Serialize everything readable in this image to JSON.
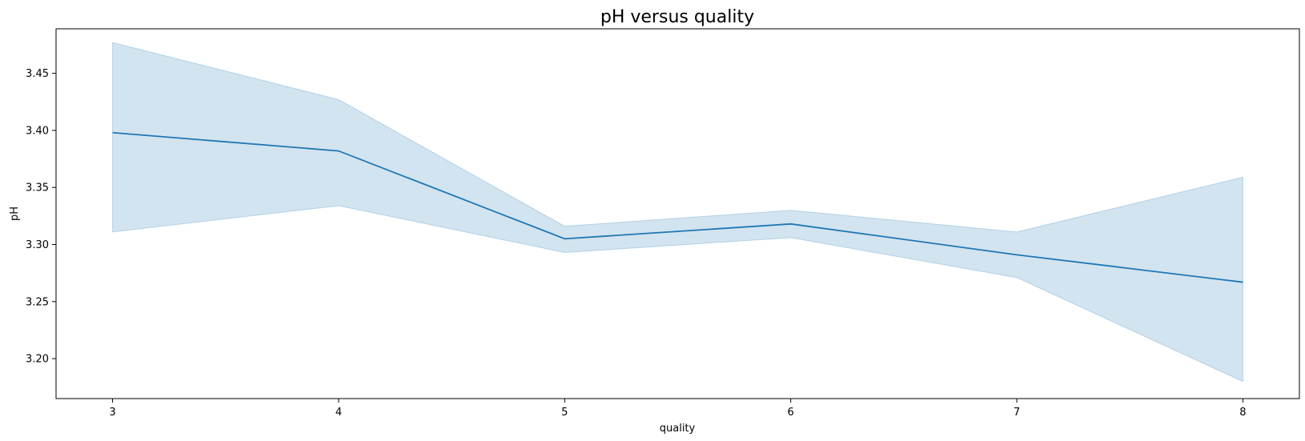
{
  "chart_data": {
    "type": "line",
    "title": "pH versus quality",
    "xlabel": "quality",
    "ylabel": "pH",
    "x": [
      3,
      4,
      5,
      6,
      7,
      8
    ],
    "x_ticks": [
      "3",
      "4",
      "5",
      "6",
      "7",
      "8"
    ],
    "y_ticks": [
      "3.20",
      "3.25",
      "3.30",
      "3.35",
      "3.40",
      "3.45"
    ],
    "y_tick_values": [
      3.2,
      3.25,
      3.3,
      3.35,
      3.4,
      3.45
    ],
    "xlim": [
      2.75,
      8.25
    ],
    "ylim": [
      3.165,
      3.489
    ],
    "grid": false,
    "series": [
      {
        "values": [
          3.398,
          3.382,
          3.305,
          3.318,
          3.291,
          3.267
        ],
        "ci_lower": [
          3.311,
          3.334,
          3.293,
          3.306,
          3.271,
          3.18
        ],
        "ci_upper": [
          3.477,
          3.427,
          3.316,
          3.33,
          3.311,
          3.359
        ],
        "color": "#1f77b4"
      }
    ]
  }
}
